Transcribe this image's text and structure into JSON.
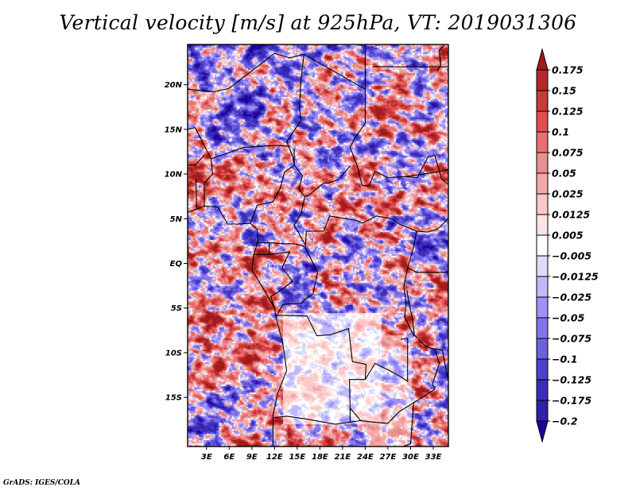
{
  "title": "Vertical velocity [m/s] at 925hPa, VT: 2019031306",
  "footer": "GrADS: IGES/COLA",
  "chart_data": {
    "type": "heatmap",
    "title": "Vertical velocity [m/s] at 925hPa, VT: 2019031306",
    "variable": "Vertical velocity",
    "units": "m/s",
    "level": "925hPa",
    "valid_time": "2019031306",
    "xlabel": "",
    "ylabel": "",
    "xlim_deg": [
      0.5,
      35
    ],
    "ylim_deg": [
      -20.5,
      24.5
    ],
    "x_ticks": [
      {
        "value": 3,
        "label": "3E"
      },
      {
        "value": 6,
        "label": "6E"
      },
      {
        "value": 9,
        "label": "9E"
      },
      {
        "value": 12,
        "label": "12E"
      },
      {
        "value": 15,
        "label": "15E"
      },
      {
        "value": 18,
        "label": "18E"
      },
      {
        "value": 21,
        "label": "21E"
      },
      {
        "value": 24,
        "label": "24E"
      },
      {
        "value": 27,
        "label": "27E"
      },
      {
        "value": 30,
        "label": "30E"
      },
      {
        "value": 33,
        "label": "33E"
      }
    ],
    "y_ticks": [
      {
        "value": 20,
        "label": "20N"
      },
      {
        "value": 15,
        "label": "15N"
      },
      {
        "value": 10,
        "label": "10N"
      },
      {
        "value": 5,
        "label": "5N"
      },
      {
        "value": 0,
        "label": "EQ"
      },
      {
        "value": -5,
        "label": "5S"
      },
      {
        "value": -10,
        "label": "10S"
      },
      {
        "value": -15,
        "label": "15S"
      }
    ],
    "colorbar": {
      "orientation": "vertical",
      "placement": "right",
      "extend": "both",
      "levels": [
        0.175,
        0.15,
        0.125,
        0.1,
        0.075,
        0.05,
        0.025,
        0.0125,
        0.005,
        -0.005,
        -0.0125,
        -0.025,
        -0.05,
        -0.075,
        -0.1,
        -0.125,
        -0.175,
        -0.2
      ],
      "labels": [
        "0.175",
        "0.15",
        "0.125",
        "0.1",
        "0.075",
        "0.05",
        "0.025",
        "0.0125",
        "0.005",
        "−0.005",
        "−0.0125",
        "−0.025",
        "−0.05",
        "−0.075",
        "−0.1",
        "−0.125",
        "−0.175",
        "−0.2"
      ],
      "colors": [
        "#a01c1c",
        "#b52828",
        "#c93a3a",
        "#e05050",
        "#e87070",
        "#e89090",
        "#f4a8a8",
        "#fcc8c8",
        "#fde4e4",
        "#ffffff",
        "#dcdcfa",
        "#bfb8fa",
        "#a090fa",
        "#8274ea",
        "#6e60dc",
        "#4c40cc",
        "#3c2cbc",
        "#2e20a8",
        "#20009c"
      ]
    },
    "grid": false,
    "basemap": "country borders and coastlines (Central/West Africa)"
  }
}
